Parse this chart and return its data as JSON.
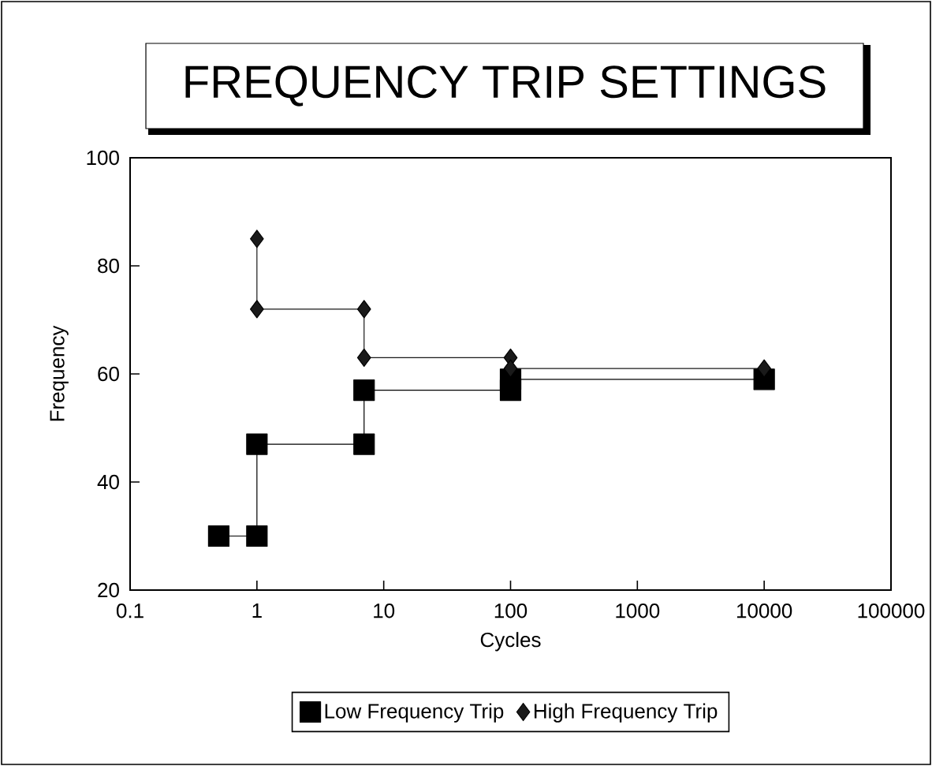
{
  "chart_data": {
    "type": "line",
    "title": "FREQUENCY TRIP SETTINGS",
    "xlabel": "Cycles",
    "ylabel": "Frequency",
    "log": "x",
    "xlim": [
      0.1,
      100000
    ],
    "xticks": [
      0.1,
      1,
      10,
      100,
      1000,
      10000,
      100000
    ],
    "ylim": [
      20,
      100
    ],
    "yticks": [
      20,
      40,
      60,
      80,
      100
    ],
    "grid": false,
    "legend": "bottom",
    "series": [
      {
        "name": "Low Frequency Trip",
        "color": "#000000",
        "marker": "square",
        "x": [
          0.5,
          1,
          1,
          7,
          7,
          100,
          100,
          10000
        ],
        "values": [
          30,
          30,
          47,
          47,
          57,
          57,
          59,
          59
        ]
      },
      {
        "name": "High Frequency Trip",
        "color": "#1a1a1a",
        "marker": "diamond",
        "x": [
          1,
          1,
          7,
          7,
          100,
          100,
          10000
        ],
        "values": [
          85,
          72,
          72,
          63,
          63,
          61,
          61
        ]
      }
    ]
  }
}
